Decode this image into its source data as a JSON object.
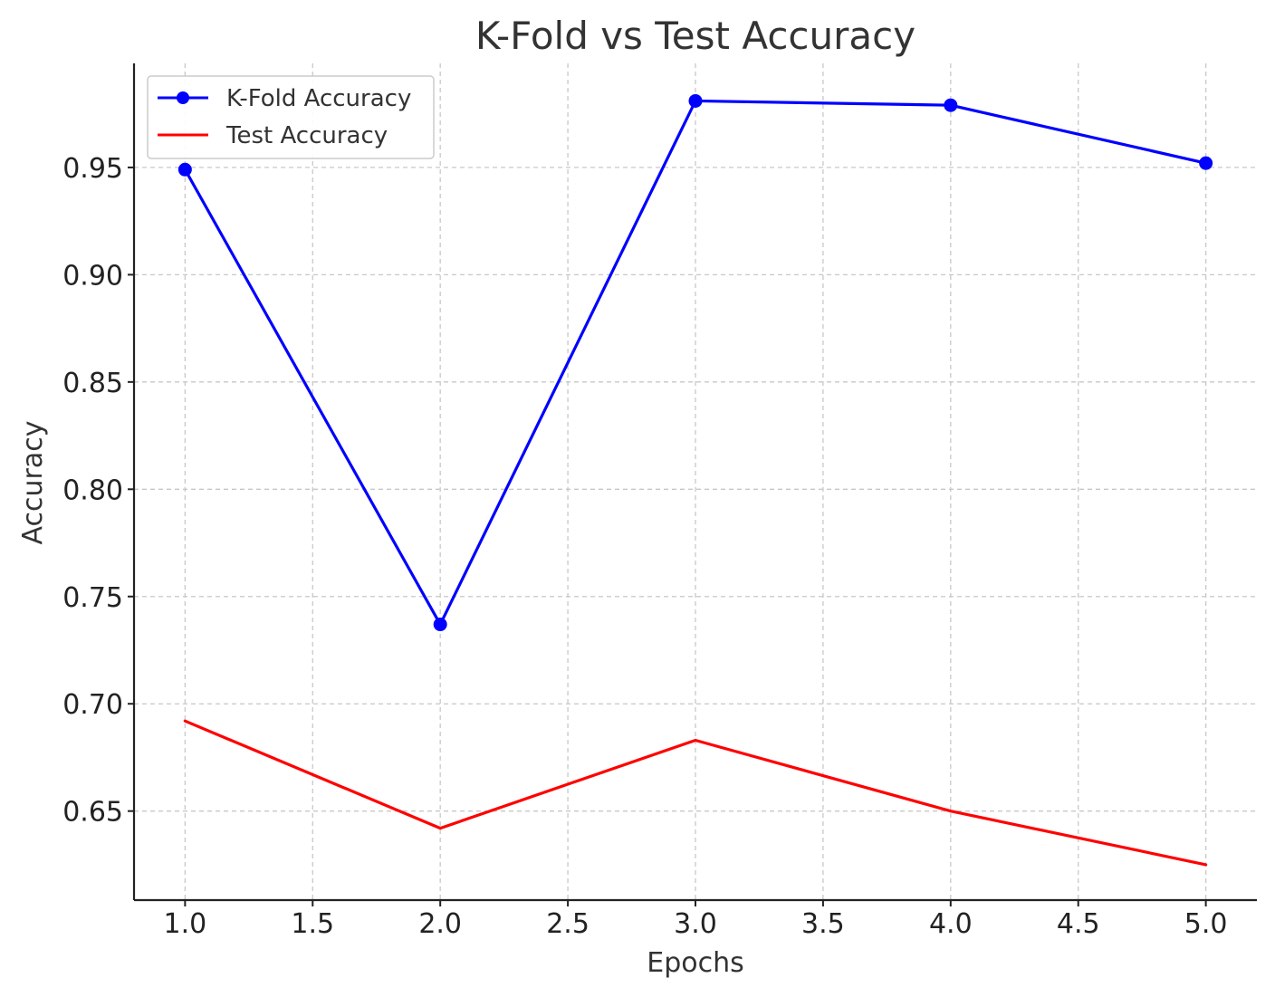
{
  "chart_data": {
    "type": "line",
    "title": "K-Fold vs Test Accuracy",
    "xlabel": "Epochs",
    "ylabel": "Accuracy",
    "xlim": [
      0.8,
      5.2
    ],
    "ylim": [
      0.6085,
      0.9985
    ],
    "x_ticks": [
      1.0,
      1.5,
      2.0,
      2.5,
      3.0,
      3.5,
      4.0,
      4.5,
      5.0
    ],
    "x_tick_labels": [
      "1.0",
      "1.5",
      "2.0",
      "2.5",
      "3.0",
      "3.5",
      "4.0",
      "4.5",
      "5.0"
    ],
    "y_ticks": [
      0.65,
      0.7,
      0.75,
      0.8,
      0.85,
      0.9,
      0.95
    ],
    "y_tick_labels": [
      "0.65",
      "0.70",
      "0.75",
      "0.80",
      "0.85",
      "0.90",
      "0.95"
    ],
    "grid": true,
    "legend_position": "top-left",
    "series": [
      {
        "name": "K-Fold Accuracy",
        "color": "#0000ff",
        "marker": "circle",
        "x": [
          1,
          2,
          3,
          4,
          5
        ],
        "values": [
          0.949,
          0.737,
          0.981,
          0.979,
          0.952
        ]
      },
      {
        "name": "Test Accuracy",
        "color": "#ff0000",
        "marker": "none",
        "x": [
          1,
          2,
          3,
          4,
          5
        ],
        "values": [
          0.692,
          0.642,
          0.683,
          0.65,
          0.625
        ]
      }
    ]
  }
}
